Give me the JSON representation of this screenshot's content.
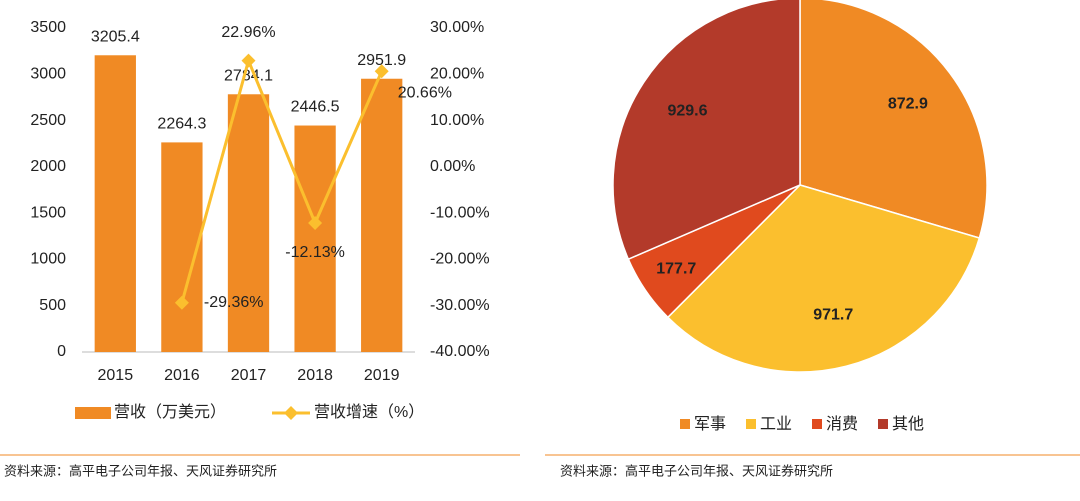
{
  "chart_data": [
    {
      "type": "bar_line",
      "categories": [
        "2015",
        "2016",
        "2017",
        "2018",
        "2019"
      ],
      "series": [
        {
          "name": "营收（万美元）",
          "type": "bar",
          "color": "#f08a24",
          "values": [
            3205.4,
            2264.3,
            2784.1,
            2446.5,
            2951.9
          ]
        },
        {
          "name": "营收增速（%）",
          "type": "line",
          "axis": "y2",
          "color": "#fbbf2e",
          "values": [
            null,
            -29.36,
            22.96,
            -12.13,
            20.66
          ],
          "value_labels": [
            null,
            "-29.36%",
            "22.96%",
            "-12.13%",
            "20.66%"
          ]
        }
      ],
      "ylim": [
        0,
        3500
      ],
      "yticks": [
        0,
        500,
        1000,
        1500,
        2000,
        2500,
        3000,
        3500
      ],
      "y2lim": [
        -40,
        30
      ],
      "y2ticks": [
        {
          "value": -40,
          "label": "-40.00%"
        },
        {
          "value": -30,
          "label": "-30.00%"
        },
        {
          "value": -20,
          "label": "-20.00%"
        },
        {
          "value": -10,
          "label": "-10.00%"
        },
        {
          "value": 0,
          "label": "0.00%"
        },
        {
          "value": 10,
          "label": "10.00%"
        },
        {
          "value": 20,
          "label": "20.00%"
        },
        {
          "value": 30,
          "label": "30.00%"
        }
      ],
      "source": "资料来源：高平电子公司年报、天风证券研究所"
    },
    {
      "type": "pie",
      "categories": [
        "军事",
        "工业",
        "消费",
        "其他"
      ],
      "values": [
        872.9,
        971.7,
        177.7,
        929.6
      ],
      "colors": [
        "#f08a24",
        "#fbbf2e",
        "#e04a1e",
        "#b33a2a"
      ],
      "source": "资料来源：高平电子公司年报、天风证券研究所"
    }
  ]
}
